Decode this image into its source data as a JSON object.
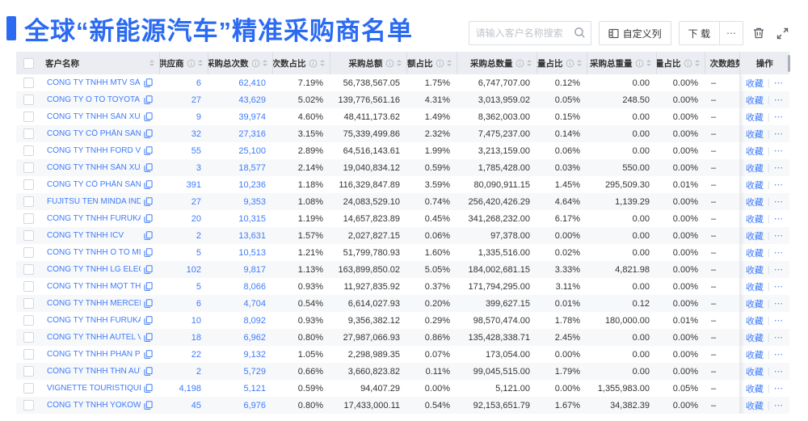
{
  "page": {
    "title": "全球“新能源汽车”精准采购商名单"
  },
  "toolbar": {
    "search_placeholder": "请输入客户名称搜索",
    "customize_columns_label": "自定义列",
    "download_label": "下 载",
    "more_label": "⋯"
  },
  "colors": {
    "accent": "#2b6bf2",
    "link": "#3e7bfa",
    "header_bg": "#ebedf2"
  },
  "table": {
    "columns": [
      {
        "key": "name",
        "label": "客户名称",
        "info": false,
        "sort": true,
        "align": "left"
      },
      {
        "key": "supplier",
        "label": "供应商",
        "info": true,
        "sort": true,
        "align": "right"
      },
      {
        "key": "times",
        "label": "采购总次数",
        "info": true,
        "sort": true,
        "align": "right"
      },
      {
        "key": "times_pct",
        "label": "次数占比",
        "info": true,
        "sort": true,
        "align": "right"
      },
      {
        "key": "amount",
        "label": "采购总额",
        "info": true,
        "sort": true,
        "align": "right"
      },
      {
        "key": "amount_pct",
        "label": "总额占比",
        "info": true,
        "sort": true,
        "align": "right"
      },
      {
        "key": "qty",
        "label": "采购总数量",
        "info": true,
        "sort": true,
        "align": "right"
      },
      {
        "key": "qty_pct",
        "label": "数量占比",
        "info": true,
        "sort": true,
        "align": "right"
      },
      {
        "key": "weight",
        "label": "采购总重量",
        "info": true,
        "sort": true,
        "align": "right"
      },
      {
        "key": "weight_pct",
        "label": "重量占比",
        "info": true,
        "sort": true,
        "align": "right"
      },
      {
        "key": "trend",
        "label": "次数趋势",
        "info": false,
        "sort": false,
        "align": "left"
      },
      {
        "key": "action",
        "label": "操作",
        "info": false,
        "sort": false,
        "align": "center"
      }
    ],
    "actions": {
      "favorite": "收藏",
      "more": "⋯"
    },
    "rows": [
      {
        "name": "CÔNG TY TNHH MTV SẢN XUẤ...",
        "supplier": "6",
        "times": "62,410",
        "times_pct": "7.19%",
        "amount": "56,738,567.05",
        "amount_pct": "1.75%",
        "qty": "6,747,707.00",
        "qty_pct": "0.12%",
        "weight": "0.00",
        "weight_pct": "0.00%",
        "trend": "–"
      },
      {
        "name": "CÔNG TY Ô TÔ TOYOTA VIỆT ...",
        "supplier": "27",
        "times": "43,629",
        "times_pct": "5.02%",
        "amount": "139,776,561.16",
        "amount_pct": "4.31%",
        "qty": "3,013,959.02",
        "qty_pct": "0.05%",
        "weight": "248.50",
        "weight_pct": "0.00%",
        "trend": "–"
      },
      {
        "name": "CÔNG TY TNHH SẢN XUẤT VÀ ...",
        "supplier": "9",
        "times": "39,974",
        "times_pct": "4.60%",
        "amount": "48,411,173.62",
        "amount_pct": "1.49%",
        "qty": "8,362,003.00",
        "qty_pct": "0.15%",
        "weight": "0.00",
        "weight_pct": "0.00%",
        "trend": "–"
      },
      {
        "name": "CÔNG TY CỔ PHẦN SẢN XUẤT...",
        "supplier": "32",
        "times": "27,316",
        "times_pct": "3.15%",
        "amount": "75,339,499.86",
        "amount_pct": "2.32%",
        "qty": "7,475,237.00",
        "qty_pct": "0.14%",
        "weight": "0.00",
        "weight_pct": "0.00%",
        "trend": "–"
      },
      {
        "name": "CÔNG TY TNHH FORD VIỆT NAM",
        "supplier": "55",
        "times": "25,100",
        "times_pct": "2.89%",
        "amount": "64,516,143.61",
        "amount_pct": "1.99%",
        "qty": "3,213,159.00",
        "qty_pct": "0.06%",
        "weight": "0.00",
        "weight_pct": "0.00%",
        "trend": "–"
      },
      {
        "name": "CÔNG TY TNHH SẢN XUẤT VÀ ...",
        "supplier": "3",
        "times": "18,577",
        "times_pct": "2.14%",
        "amount": "19,040,834.12",
        "amount_pct": "0.59%",
        "qty": "1,785,428.00",
        "qty_pct": "0.03%",
        "weight": "550.00",
        "weight_pct": "0.00%",
        "trend": "–"
      },
      {
        "name": "CÔNG TY CỔ PHẦN SẢN XUẤT...",
        "supplier": "391",
        "times": "10,236",
        "times_pct": "1.18%",
        "amount": "116,329,847.89",
        "amount_pct": "3.59%",
        "qty": "80,090,911.15",
        "qty_pct": "1.45%",
        "weight": "295,509.30",
        "weight_pct": "0.01%",
        "trend": "–"
      },
      {
        "name": "FUJITSU TEN MINDA INDIA PVT...",
        "supplier": "27",
        "times": "9,353",
        "times_pct": "1.08%",
        "amount": "24,083,529.10",
        "amount_pct": "0.74%",
        "qty": "256,420,426.29",
        "qty_pct": "4.64%",
        "weight": "1,139.29",
        "weight_pct": "0.00%",
        "trend": "–"
      },
      {
        "name": "CÔNG TY TNHH FURUKAWA A...",
        "supplier": "20",
        "times": "10,315",
        "times_pct": "1.19%",
        "amount": "14,657,823.89",
        "amount_pct": "0.45%",
        "qty": "341,268,232.00",
        "qty_pct": "6.17%",
        "weight": "0.00",
        "weight_pct": "0.00%",
        "trend": "–"
      },
      {
        "name": "CÔNG TY TNHH ICV",
        "supplier": "2",
        "times": "13,631",
        "times_pct": "1.57%",
        "amount": "2,027,827.15",
        "amount_pct": "0.06%",
        "qty": "97,378.00",
        "qty_pct": "0.00%",
        "weight": "0.00",
        "weight_pct": "0.00%",
        "trend": "–"
      },
      {
        "name": "CÔNG TY TNHH Ô TÔ MITSUBI...",
        "supplier": "5",
        "times": "10,513",
        "times_pct": "1.21%",
        "amount": "51,799,780.93",
        "amount_pct": "1.60%",
        "qty": "1,335,516.00",
        "qty_pct": "0.02%",
        "weight": "0.00",
        "weight_pct": "0.00%",
        "trend": "–"
      },
      {
        "name": "CÔNG TY TNHH LG ELECTRON...",
        "supplier": "102",
        "times": "9,817",
        "times_pct": "1.13%",
        "amount": "163,899,850.02",
        "amount_pct": "5.05%",
        "qty": "184,002,681.15",
        "qty_pct": "3.33%",
        "weight": "4,821.98",
        "weight_pct": "0.00%",
        "trend": "–"
      },
      {
        "name": "CÔNG TY TNHH MỘT THÀNH V...",
        "supplier": "5",
        "times": "8,066",
        "times_pct": "0.93%",
        "amount": "11,927,835.92",
        "amount_pct": "0.37%",
        "qty": "171,794,295.00",
        "qty_pct": "3.11%",
        "weight": "0.00",
        "weight_pct": "0.00%",
        "trend": "–"
      },
      {
        "name": "CÔNG TY TNHH MERCEDES-B...",
        "supplier": "6",
        "times": "4,704",
        "times_pct": "0.54%",
        "amount": "6,614,027.93",
        "amount_pct": "0.20%",
        "qty": "399,627.15",
        "qty_pct": "0.01%",
        "weight": "0.12",
        "weight_pct": "0.00%",
        "trend": "–"
      },
      {
        "name": "CÔNG TY TNHH FURUKAWA A...",
        "supplier": "10",
        "times": "8,092",
        "times_pct": "0.93%",
        "amount": "9,356,382.12",
        "amount_pct": "0.29%",
        "qty": "98,570,474.00",
        "qty_pct": "1.78%",
        "weight": "180,000.00",
        "weight_pct": "0.01%",
        "trend": "–"
      },
      {
        "name": "CÔNG TY TNHH AUTEL VIỆT N...",
        "supplier": "18",
        "times": "6,962",
        "times_pct": "0.80%",
        "amount": "27,987,066.93",
        "amount_pct": "0.86%",
        "qty": "135,428,338.71",
        "qty_pct": "2.45%",
        "weight": "0.00",
        "weight_pct": "0.00%",
        "trend": "–"
      },
      {
        "name": "CÔNG TY TNHH PHÂN PHỐI T...",
        "supplier": "22",
        "times": "9,132",
        "times_pct": "1.05%",
        "amount": "2,298,989.35",
        "amount_pct": "0.07%",
        "qty": "173,054.00",
        "qty_pct": "0.00%",
        "weight": "0.00",
        "weight_pct": "0.00%",
        "trend": "–"
      },
      {
        "name": "CÔNG TY TNHH THN AUTOPAR...",
        "supplier": "2",
        "times": "5,729",
        "times_pct": "0.66%",
        "amount": "3,660,823.82",
        "amount_pct": "0.11%",
        "qty": "99,045,515.00",
        "qty_pct": "1.79%",
        "weight": "0.00",
        "weight_pct": "0.00%",
        "trend": "–"
      },
      {
        "name": "VIGNETTE TOURISTIQUE G UNI...",
        "supplier": "4,198",
        "times": "5,121",
        "times_pct": "0.59%",
        "amount": "94,407.29",
        "amount_pct": "0.00%",
        "qty": "5,121.00",
        "qty_pct": "0.00%",
        "weight": "1,355,983.00",
        "weight_pct": "0.05%",
        "trend": "–"
      },
      {
        "name": "CÔNG TY TNHH YOKOWO VIỆT...",
        "supplier": "45",
        "times": "6,976",
        "times_pct": "0.80%",
        "amount": "17,433,000.11",
        "amount_pct": "0.54%",
        "qty": "92,153,651.79",
        "qty_pct": "1.67%",
        "weight": "34,382.39",
        "weight_pct": "0.00%",
        "trend": "–"
      }
    ]
  }
}
